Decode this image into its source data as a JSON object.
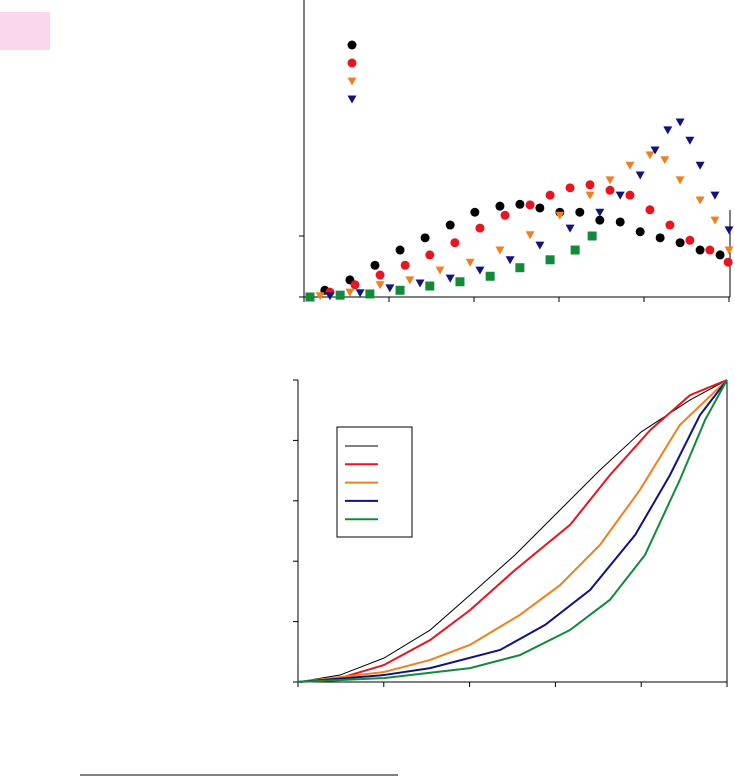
{
  "chart_data": [
    {
      "type": "scatter",
      "xlim": [
        0,
        1
      ],
      "ylim": [
        0,
        4.87
      ],
      "xticks": [
        0,
        0.2,
        0.4,
        0.6,
        0.8,
        1
      ],
      "yticks": [
        0,
        1
      ],
      "series": [
        {
          "color": "#000000",
          "marker": "circle",
          "x": [
            0.049,
            0.108,
            0.167,
            0.226,
            0.285,
            0.344,
            0.402,
            0.461,
            0.508,
            0.555,
            0.602,
            0.649,
            0.696,
            0.744,
            0.791,
            0.838,
            0.885,
            0.932,
            0.979
          ],
          "values": [
            0.11,
            0.28,
            0.52,
            0.77,
            0.97,
            1.18,
            1.39,
            1.49,
            1.52,
            1.46,
            1.39,
            1.39,
            1.26,
            1.23,
            1.07,
            0.97,
            0.89,
            0.77,
            0.69
          ]
        },
        {
          "color": "#e8141f",
          "marker": "circle",
          "x": [
            0.061,
            0.12,
            0.179,
            0.238,
            0.296,
            0.355,
            0.414,
            0.473,
            0.532,
            0.579,
            0.626,
            0.673,
            0.72,
            0.767,
            0.814,
            0.861,
            0.908,
            0.955,
            0.998
          ],
          "values": [
            0.08,
            0.2,
            0.36,
            0.52,
            0.69,
            0.89,
            1.13,
            1.34,
            1.51,
            1.67,
            1.79,
            1.84,
            1.75,
            1.67,
            1.43,
            1.18,
            0.93,
            0.77,
            0.57
          ]
        },
        {
          "color": "#f07f20",
          "marker": "triangle-down",
          "x": [
            0.038,
            0.108,
            0.179,
            0.249,
            0.32,
            0.391,
            0.461,
            0.532,
            0.602,
            0.673,
            0.72,
            0.767,
            0.814,
            0.849,
            0.885,
            0.932,
            0.967,
            1
          ],
          "values": [
            0.02,
            0.08,
            0.2,
            0.28,
            0.44,
            0.57,
            0.77,
            1.02,
            1.34,
            1.67,
            1.92,
            2.16,
            2.33,
            2.25,
            1.92,
            1.59,
            1.26,
            0.77
          ]
        },
        {
          "color": "#10137e",
          "marker": "triangle-down",
          "x": [
            0.061,
            0.132,
            0.202,
            0.273,
            0.344,
            0.414,
            0.485,
            0.555,
            0.626,
            0.696,
            0.744,
            0.791,
            0.826,
            0.856,
            0.885,
            0.908,
            0.932,
            0.967,
            1
          ],
          "values": [
            0.02,
            0.07,
            0.15,
            0.23,
            0.31,
            0.44,
            0.61,
            0.85,
            1.13,
            1.39,
            1.67,
            2.0,
            2.41,
            2.74,
            2.87,
            2.57,
            2.16,
            1.67,
            1.1
          ]
        },
        {
          "color": "#138a3a",
          "marker": "square",
          "x": [
            0.014,
            0.085,
            0.155,
            0.226,
            0.296,
            0.367,
            0.438,
            0.508,
            0.579,
            0.638,
            0.678
          ],
          "values": [
            0,
            0.03,
            0.05,
            0.11,
            0.18,
            0.25,
            0.34,
            0.48,
            0.61,
            0.77,
            1.0
          ]
        }
      ]
    },
    {
      "type": "line",
      "xlim": [
        0,
        1
      ],
      "ylim": [
        0,
        1
      ],
      "xticks": [
        0,
        0.2,
        0.4,
        0.6,
        0.8,
        1
      ],
      "yticks": [
        0,
        0.2,
        0.4,
        0.6,
        0.8,
        1
      ],
      "series": [
        {
          "color": "#000000",
          "x": [
            0,
            0.098,
            0.2,
            0.308,
            0.401,
            0.506,
            0.599,
            0.704,
            0.8,
            0.914,
            1
          ],
          "values": [
            0,
            0.023,
            0.079,
            0.172,
            0.288,
            0.421,
            0.553,
            0.702,
            0.828,
            0.934,
            1
          ]
        },
        {
          "color": "#e8141f",
          "x": [
            0,
            0.098,
            0.2,
            0.308,
            0.401,
            0.506,
            0.634,
            0.727,
            0.821,
            0.914,
            1
          ],
          "values": [
            0,
            0.013,
            0.056,
            0.139,
            0.238,
            0.371,
            0.52,
            0.685,
            0.834,
            0.95,
            1
          ]
        },
        {
          "color": "#f07f20",
          "x": [
            0,
            0.2,
            0.308,
            0.401,
            0.517,
            0.611,
            0.704,
            0.797,
            0.89,
            1
          ],
          "values": [
            0,
            0.033,
            0.073,
            0.123,
            0.222,
            0.321,
            0.454,
            0.636,
            0.851,
            1
          ]
        },
        {
          "color": "#10137e",
          "x": [
            0,
            0.2,
            0.308,
            0.471,
            0.576,
            0.681,
            0.786,
            0.867,
            0.937,
            1
          ],
          "values": [
            0,
            0.023,
            0.046,
            0.106,
            0.189,
            0.305,
            0.487,
            0.685,
            0.884,
            1
          ]
        },
        {
          "color": "#138a3a",
          "x": [
            0,
            0.2,
            0.401,
            0.517,
            0.634,
            0.727,
            0.809,
            0.89,
            0.949,
            1
          ],
          "values": [
            0,
            0.013,
            0.046,
            0.089,
            0.172,
            0.272,
            0.421,
            0.669,
            0.868,
            1
          ]
        }
      ]
    }
  ]
}
